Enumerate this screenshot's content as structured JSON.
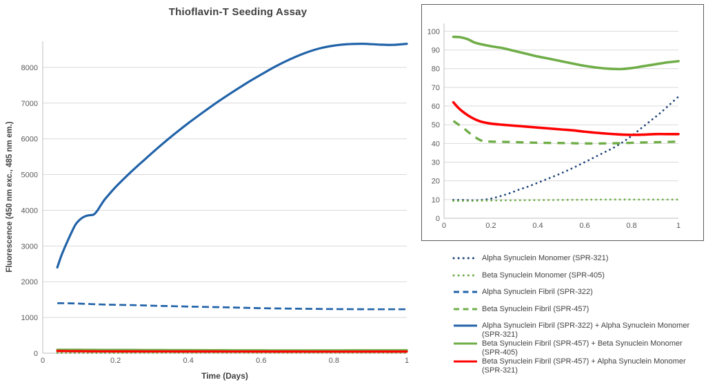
{
  "chart_data": {
    "type": "line",
    "title": "Thioflavin-T Seeding Assay",
    "xlabel": "Time (Days)",
    "ylabel": "Fluorescence (450 nm exc., 485 nm em.)",
    "grid": "horizontal",
    "legend_position": "bottom-right",
    "colors": {
      "blue_solid": "#2062A8",
      "blue_dotted": "#1F4478",
      "green": "#6FAD47",
      "red": "#FF0000",
      "gridline": "#D9D9D9",
      "axis_line": "#BFBFBF",
      "tick_label": "#595959",
      "title_text": "#404040"
    },
    "main_chart": {
      "xlim": [
        0,
        1
      ],
      "ylim": [
        0,
        8730
      ],
      "x_ticks": [
        0,
        0.2,
        0.4,
        0.6,
        0.8,
        1
      ],
      "y_ticks": [
        0,
        1000,
        2000,
        3000,
        4000,
        5000,
        6000,
        7000,
        8000
      ],
      "series": [
        "Alpha Synuclein Monomer (SPR-321)",
        "Beta Synuclein Monomer (SPR-405)",
        "Alpha Synuclein Fibril (SPR-322)",
        "Beta Synuclein Fibril (SPR-457)",
        "Alpha Synuclein Fibril (SPR-322) + Alpha Synuclein Monomer (SPR-321)",
        "Beta Synuclein Fibril (SPR-457) + Beta Synuclein Monomer (SPR-405)",
        "Beta Synuclein Fibril (SPR-457) + Alpha Synuclein Monomer (SPR-321)"
      ]
    },
    "inset_chart": {
      "xlim": [
        0,
        1
      ],
      "ylim": [
        0,
        104.2
      ],
      "x_ticks": [
        0,
        0.2,
        0.4,
        0.6,
        0.8,
        1
      ],
      "y_ticks": [
        0,
        10,
        20,
        30,
        40,
        50,
        60,
        70,
        80,
        90,
        100
      ],
      "series": [
        "Alpha Synuclein Monomer (SPR-321)",
        "Beta Synuclein Monomer (SPR-405)",
        "Beta Synuclein Fibril (SPR-457)",
        "Beta Synuclein Fibril (SPR-457) + Beta Synuclein Monomer (SPR-405)",
        "Beta Synuclein Fibril (SPR-457) + Alpha Synuclein Monomer (SPR-321)"
      ]
    },
    "series": [
      {
        "name": "Alpha Synuclein Monomer (SPR-321)",
        "color": "#1F4478",
        "style": "dotted",
        "points": [
          [
            0.04,
            9.8
          ],
          [
            0.08,
            9.8
          ],
          [
            0.12,
            9.6
          ],
          [
            0.16,
            9.8
          ],
          [
            0.2,
            10.5
          ],
          [
            0.24,
            11.8
          ],
          [
            0.28,
            13.4
          ],
          [
            0.32,
            15.3
          ],
          [
            0.36,
            17
          ],
          [
            0.4,
            19
          ],
          [
            0.44,
            21
          ],
          [
            0.48,
            23
          ],
          [
            0.52,
            25.2
          ],
          [
            0.56,
            27.5
          ],
          [
            0.6,
            30
          ],
          [
            0.64,
            32.5
          ],
          [
            0.68,
            35
          ],
          [
            0.72,
            37.5
          ],
          [
            0.76,
            40.5
          ],
          [
            0.8,
            44
          ],
          [
            0.84,
            48
          ],
          [
            0.88,
            52
          ],
          [
            0.92,
            56
          ],
          [
            0.96,
            60.5
          ],
          [
            1,
            65
          ]
        ]
      },
      {
        "name": "Beta Synuclein Monomer (SPR-405)",
        "color": "#6FAD47",
        "style": "dotted",
        "points": [
          [
            0.04,
            9.3
          ],
          [
            0.12,
            9.3
          ],
          [
            0.2,
            9.5
          ],
          [
            0.3,
            9.6
          ],
          [
            0.4,
            9.7
          ],
          [
            0.5,
            9.8
          ],
          [
            0.6,
            9.9
          ],
          [
            0.7,
            10
          ],
          [
            0.8,
            10
          ],
          [
            0.9,
            10
          ],
          [
            1,
            10
          ]
        ]
      },
      {
        "name": "Alpha Synuclein Fibril (SPR-322)",
        "color": "#2062A8",
        "style": "dashed",
        "points": [
          [
            0.04,
            1400
          ],
          [
            0.08,
            1395
          ],
          [
            0.12,
            1380
          ],
          [
            0.16,
            1365
          ],
          [
            0.2,
            1355
          ],
          [
            0.25,
            1345
          ],
          [
            0.3,
            1330
          ],
          [
            0.35,
            1318
          ],
          [
            0.4,
            1305
          ],
          [
            0.45,
            1295
          ],
          [
            0.5,
            1285
          ],
          [
            0.55,
            1272
          ],
          [
            0.6,
            1260
          ],
          [
            0.65,
            1252
          ],
          [
            0.7,
            1245
          ],
          [
            0.75,
            1240
          ],
          [
            0.8,
            1235
          ],
          [
            0.85,
            1232
          ],
          [
            0.9,
            1230
          ],
          [
            0.95,
            1230
          ],
          [
            1,
            1230
          ]
        ]
      },
      {
        "name": "Beta Synuclein Fibril (SPR-457)",
        "color": "#6FAD47",
        "style": "dashed",
        "points": [
          [
            0.04,
            52
          ],
          [
            0.08,
            48.5
          ],
          [
            0.12,
            44.5
          ],
          [
            0.16,
            41.5
          ],
          [
            0.2,
            41
          ],
          [
            0.28,
            40.8
          ],
          [
            0.36,
            40.5
          ],
          [
            0.44,
            40.3
          ],
          [
            0.52,
            40.2
          ],
          [
            0.6,
            40
          ],
          [
            0.68,
            40
          ],
          [
            0.76,
            40.2
          ],
          [
            0.84,
            40.5
          ],
          [
            0.92,
            40.7
          ],
          [
            1,
            41
          ]
        ]
      },
      {
        "name": "Alpha Synuclein Fibril (SPR-322) + Alpha Synuclein Monomer (SPR-321)",
        "color": "#2062A8",
        "style": "solid",
        "points": [
          [
            0.04,
            2400
          ],
          [
            0.05,
            2700
          ],
          [
            0.06,
            2950
          ],
          [
            0.07,
            3180
          ],
          [
            0.08,
            3400
          ],
          [
            0.09,
            3600
          ],
          [
            0.1,
            3720
          ],
          [
            0.11,
            3800
          ],
          [
            0.12,
            3845
          ],
          [
            0.13,
            3865
          ],
          [
            0.14,
            3880
          ],
          [
            0.15,
            3990
          ],
          [
            0.16,
            4150
          ],
          [
            0.17,
            4300
          ],
          [
            0.18,
            4420
          ],
          [
            0.2,
            4650
          ],
          [
            0.24,
            5050
          ],
          [
            0.28,
            5420
          ],
          [
            0.32,
            5780
          ],
          [
            0.36,
            6120
          ],
          [
            0.4,
            6440
          ],
          [
            0.44,
            6740
          ],
          [
            0.48,
            7030
          ],
          [
            0.52,
            7300
          ],
          [
            0.56,
            7560
          ],
          [
            0.6,
            7800
          ],
          [
            0.64,
            8030
          ],
          [
            0.68,
            8230
          ],
          [
            0.72,
            8400
          ],
          [
            0.76,
            8530
          ],
          [
            0.8,
            8610
          ],
          [
            0.84,
            8650
          ],
          [
            0.88,
            8660
          ],
          [
            0.92,
            8640
          ],
          [
            0.96,
            8630
          ],
          [
            1,
            8660
          ]
        ]
      },
      {
        "name": "Beta Synuclein Fibril (SPR-457) + Beta Synuclein Monomer (SPR-405)",
        "color": "#6FAD47",
        "style": "solid",
        "points": [
          [
            0.04,
            97
          ],
          [
            0.07,
            96.8
          ],
          [
            0.1,
            95.8
          ],
          [
            0.13,
            94
          ],
          [
            0.16,
            93
          ],
          [
            0.2,
            92
          ],
          [
            0.25,
            91
          ],
          [
            0.3,
            89.5
          ],
          [
            0.35,
            88
          ],
          [
            0.4,
            86.5
          ],
          [
            0.45,
            85.3
          ],
          [
            0.5,
            84
          ],
          [
            0.55,
            82.7
          ],
          [
            0.6,
            81.5
          ],
          [
            0.65,
            80.6
          ],
          [
            0.7,
            80
          ],
          [
            0.75,
            79.8
          ],
          [
            0.8,
            80.3
          ],
          [
            0.85,
            81.3
          ],
          [
            0.9,
            82.3
          ],
          [
            0.95,
            83.3
          ],
          [
            1,
            84
          ]
        ]
      },
      {
        "name": "Beta Synuclein Fibril (SPR-457) + Alpha Synuclein Monomer (SPR-321)",
        "color": "#FF0000",
        "style": "solid",
        "points": [
          [
            0.04,
            62
          ],
          [
            0.06,
            59.2
          ],
          [
            0.08,
            57
          ],
          [
            0.1,
            55.2
          ],
          [
            0.12,
            53.7
          ],
          [
            0.14,
            52.5
          ],
          [
            0.16,
            51.6
          ],
          [
            0.2,
            50.6
          ],
          [
            0.25,
            50
          ],
          [
            0.3,
            49.5
          ],
          [
            0.35,
            49
          ],
          [
            0.4,
            48.5
          ],
          [
            0.45,
            48
          ],
          [
            0.5,
            47.5
          ],
          [
            0.55,
            47
          ],
          [
            0.6,
            46.3
          ],
          [
            0.65,
            45.7
          ],
          [
            0.7,
            45.2
          ],
          [
            0.75,
            44.8
          ],
          [
            0.8,
            44.6
          ],
          [
            0.85,
            44.7
          ],
          [
            0.9,
            45
          ],
          [
            0.95,
            45
          ],
          [
            1,
            45
          ]
        ]
      }
    ]
  }
}
